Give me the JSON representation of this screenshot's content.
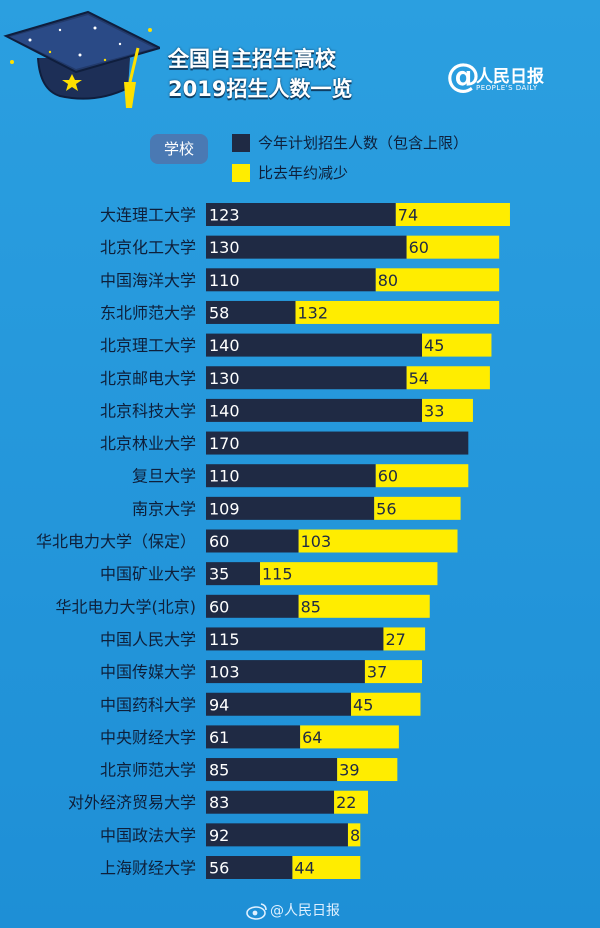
{
  "header": {
    "title_line1": "全国自主招生高校",
    "title_line2": "2019招生人数一览"
  },
  "logo": {
    "at": "@",
    "name": "人民日报",
    "en": "PEOPLE'S DAILY"
  },
  "colors": {
    "background": "#2b9fe0",
    "planned": "#1f2a44",
    "reduced": "#ffed00",
    "label": "#0e1f3a"
  },
  "chart_data": {
    "type": "bar",
    "orientation": "horizontal",
    "stacked": true,
    "category_header": "学校",
    "categories": [
      "大连理工大学",
      "北京化工大学",
      "中国海洋大学",
      "东北师范大学",
      "北京理工大学",
      "北京邮电大学",
      "北京科技大学",
      "北京林业大学",
      "复旦大学",
      "南京大学",
      "华北电力大学（保定）",
      "中国矿业大学",
      "华北电力大学(北京)",
      "中国人民大学",
      "中国传媒大学",
      "中国药科大学",
      "中央财经大学",
      "北京师范大学",
      "对外经济贸易大学",
      "中国政法大学",
      "上海财经大学"
    ],
    "series": [
      {
        "name": "今年计划招生人数（包含上限）",
        "values": [
          123,
          130,
          110,
          58,
          140,
          130,
          140,
          170,
          110,
          109,
          60,
          35,
          60,
          115,
          103,
          94,
          61,
          85,
          83,
          92,
          56
        ]
      },
      {
        "name": "比去年约减少",
        "values": [
          74,
          60,
          80,
          132,
          45,
          54,
          33,
          null,
          60,
          56,
          103,
          115,
          85,
          27,
          37,
          45,
          64,
          39,
          22,
          8,
          44
        ]
      }
    ]
  },
  "footer": {
    "weibo": "@人民日报"
  }
}
